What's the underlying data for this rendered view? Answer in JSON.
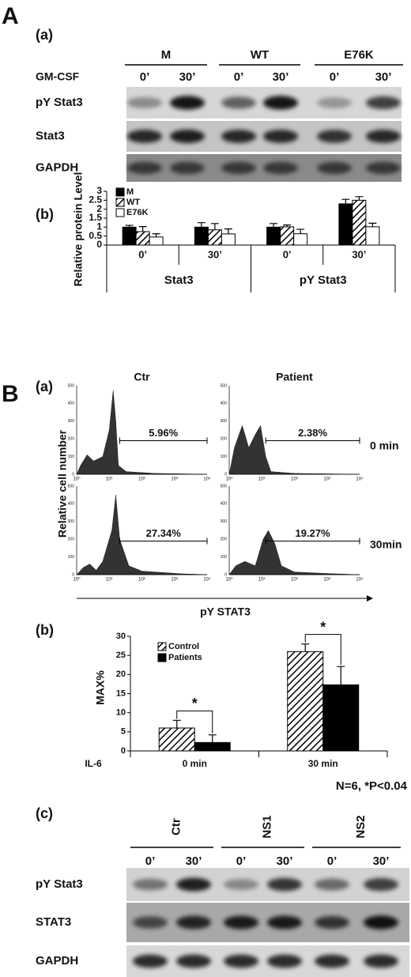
{
  "labels": [
    "A",
    "(a)",
    "(b)",
    "B",
    "(a)",
    "(b)",
    "(c)"
  ],
  "blot_a": {
    "groups": [
      "M",
      "WT",
      "E76K"
    ],
    "treatment": "GM-CSF",
    "times": [
      "0’",
      "30’",
      "0’",
      "30’",
      "0’",
      "30’"
    ],
    "rows": [
      "pY Stat3",
      "Stat3",
      "GAPDH"
    ]
  },
  "flow": {
    "columns": [
      "Ctr",
      "Patient"
    ],
    "rows": [
      "0 min",
      "30min"
    ],
    "gates": [
      "5.96%",
      "2.38%",
      "27.34%",
      "19.27%"
    ],
    "xticks": [
      "10⁰",
      "10¹",
      "10²",
      "10³",
      "10⁴"
    ],
    "yticks": [
      0,
      100,
      200,
      300,
      400,
      500
    ],
    "ylabel": "Relative cell number",
    "xlabel": "pY STAT3"
  },
  "blot_c": {
    "groups": [
      "Ctr",
      "NS1",
      "NS2"
    ],
    "times": [
      "0’",
      "30’",
      "0’",
      "30’",
      "0’",
      "30’"
    ],
    "rows": [
      "pY Stat3",
      "STAT3",
      "GAPDH"
    ]
  },
  "chart_data": [
    {
      "type": "bar",
      "ylabel": "Relative protein Level",
      "categories": [
        "0’",
        "30’",
        "0’",
        "30’"
      ],
      "groups": [
        "Stat3",
        "pY Stat3"
      ],
      "ylim": [
        0,
        3
      ],
      "yticks": [
        0,
        0.5,
        1,
        1.5,
        2,
        2.5,
        3
      ],
      "series": [
        {
          "name": "M",
          "color": "#000000",
          "values": [
            1.0,
            1.0,
            1.0,
            2.3
          ],
          "errors": [
            0.1,
            0.25,
            0.2,
            0.25
          ]
        },
        {
          "name": "WT",
          "color": "#000000",
          "pattern": "hatch",
          "values": [
            0.75,
            0.85,
            1.02,
            2.5
          ],
          "errors": [
            0.28,
            0.35,
            0.1,
            0.2
          ]
        },
        {
          "name": "E76K",
          "color": "#ffffff",
          "values": [
            0.45,
            0.62,
            0.63,
            1.02
          ],
          "errors": [
            0.18,
            0.28,
            0.25,
            0.2
          ]
        }
      ]
    },
    {
      "type": "bar",
      "ylabel": "MAX%",
      "xlabel": "IL-6",
      "categories": [
        "0 min",
        "30 min"
      ],
      "ylim": [
        0,
        30
      ],
      "yticks": [
        0,
        5,
        10,
        15,
        20,
        25,
        30
      ],
      "series": [
        {
          "name": "Control",
          "color": "#000000",
          "pattern": "hatch",
          "values": [
            6,
            26
          ],
          "errors": [
            2,
            2
          ]
        },
        {
          "name": "Patients",
          "color": "#000000",
          "values": [
            2.2,
            17.3
          ],
          "errors": [
            2,
            4.8
          ]
        }
      ],
      "annotations": [
        "*",
        "*"
      ],
      "note": "N=6, *P<0.04"
    }
  ]
}
